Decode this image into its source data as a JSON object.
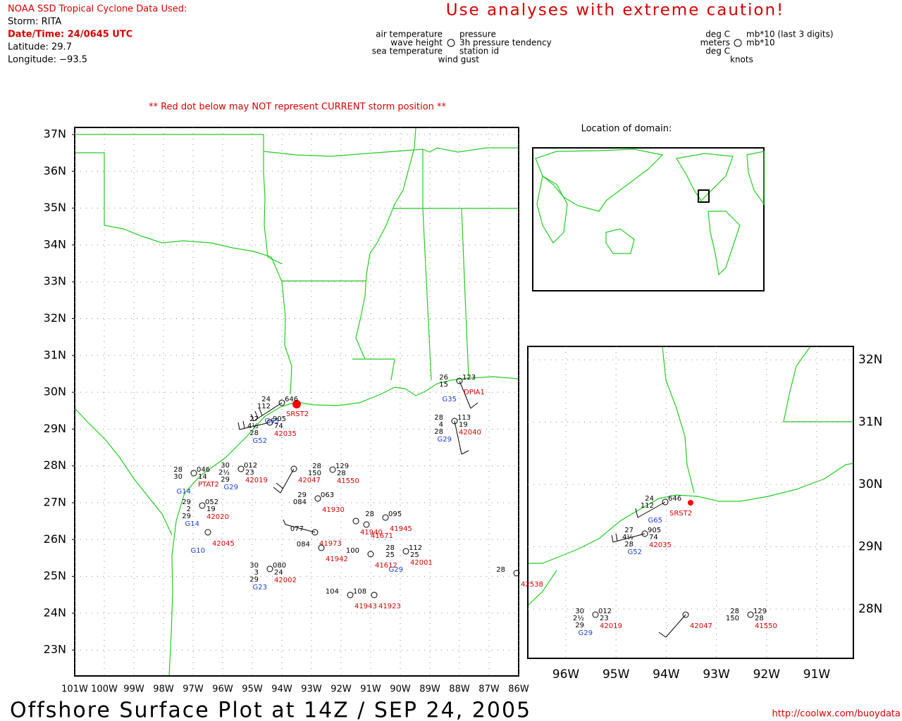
{
  "header": {
    "source": "NOAA SSD Tropical Cyclone Data Used:",
    "storm": "Storm: RITA",
    "datetime": "Date/Time: 24/0645 UTC",
    "latitude": "Latitude: 29.7",
    "longitude": "Longitude: −93.5",
    "warning": "Use analyses with extreme caution!"
  },
  "legend": {
    "left": [
      "air temperature",
      "wave height",
      "sea temperature",
      "wind gust"
    ],
    "right": [
      "pressure",
      "3h pressure tendency",
      "station id"
    ],
    "units_left": [
      "deg C",
      "meters",
      "deg C"
    ],
    "units_right": [
      "mb*10 (last 3 digits)",
      "mb*10",
      "knots"
    ]
  },
  "note": "** Red dot below may NOT represent CURRENT storm position **",
  "main_map": {
    "lat_labels": [
      "37N",
      "36N",
      "35N",
      "34N",
      "33N",
      "32N",
      "31N",
      "30N",
      "29N",
      "28N",
      "27N",
      "26N",
      "25N",
      "24N",
      "23N"
    ],
    "lon_labels": [
      "101W",
      "100W",
      "99W",
      "98W",
      "97W",
      "96W",
      "95W",
      "94W",
      "93W",
      "92W",
      "91W",
      "90W",
      "89W",
      "88W",
      "87W",
      "86W"
    ],
    "stations": [
      {
        "id": "SRST2",
        "obs": [
          "24",
          "646",
          "112"
        ],
        "gust": "G65"
      },
      {
        "id": "42035",
        "obs": [
          "27",
          "905",
          "4½",
          "74",
          "28"
        ],
        "gust": "G52"
      },
      {
        "id": "PTAT2",
        "obs": [
          "28",
          "046",
          "30",
          "14"
        ],
        "gust": "G14"
      },
      {
        "id": "42019",
        "obs": [
          "30",
          "012",
          "2½",
          "23",
          "29"
        ],
        "gust": "G29"
      },
      {
        "id": "42020",
        "obs": [
          "29",
          "052",
          "2",
          "19",
          "29"
        ],
        "gust": "G14"
      },
      {
        "id": "42045",
        "obs": [],
        "gust": "G10"
      },
      {
        "id": "42002",
        "obs": [
          "30",
          "080",
          "3",
          "24",
          "29"
        ],
        "gust": "G23"
      },
      {
        "id": "42047",
        "obs": []
      },
      {
        "id": "42040",
        "obs": [
          "28",
          "113",
          "4",
          "19",
          "28"
        ],
        "gust": "G29"
      },
      {
        "id": "DPIA1",
        "obs": [
          "26",
          "123",
          "15"
        ],
        "gust": "G35"
      },
      {
        "id": "41550",
        "obs": [
          "28",
          "129",
          "150",
          "28"
        ]
      },
      {
        "id": "41930",
        "obs": [
          "29",
          "063",
          "084"
        ]
      },
      {
        "id": "41940",
        "obs": []
      },
      {
        "id": "41945",
        "obs": [
          "28",
          "095"
        ]
      },
      {
        "id": "41671",
        "obs": []
      },
      {
        "id": "41973",
        "obs": [
          "077"
        ]
      },
      {
        "id": "42001",
        "obs": [
          "28",
          "112",
          "25",
          "25"
        ],
        "gust": "G29"
      },
      {
        "id": "41612",
        "obs": [
          "100"
        ]
      },
      {
        "id": "41942",
        "obs": [
          "084"
        ]
      },
      {
        "id": "41943",
        "obs": [
          "104",
          "108"
        ]
      },
      {
        "id": "41923",
        "obs": []
      },
      {
        "id": "42538",
        "obs": [
          "28"
        ]
      }
    ]
  },
  "world_inset": {
    "title": "Location of domain:"
  },
  "zoom_map": {
    "lat_labels": [
      "32N",
      "31N",
      "30N",
      "29N",
      "28N"
    ],
    "lon_labels": [
      "96W",
      "95W",
      "94W",
      "93W",
      "92W",
      "91W"
    ],
    "stations": [
      {
        "id": "SRST2",
        "obs": [
          "24",
          "646",
          "112"
        ],
        "gust": "G65"
      },
      {
        "id": "42035",
        "obs": [
          "27",
          "905",
          "4½",
          "74",
          "28"
        ],
        "gust": "G52"
      },
      {
        "id": "42019",
        "obs": [
          "30",
          "012",
          "2½",
          "23",
          "29"
        ],
        "gust": "G29"
      },
      {
        "id": "42047",
        "obs": []
      },
      {
        "id": "41550",
        "obs": [
          "28",
          "129",
          "150",
          "28"
        ]
      }
    ]
  },
  "footer": {
    "title": "Offshore Surface Plot at 14Z / SEP 24, 2005",
    "url": "http://coolwx.com/buoydata"
  }
}
